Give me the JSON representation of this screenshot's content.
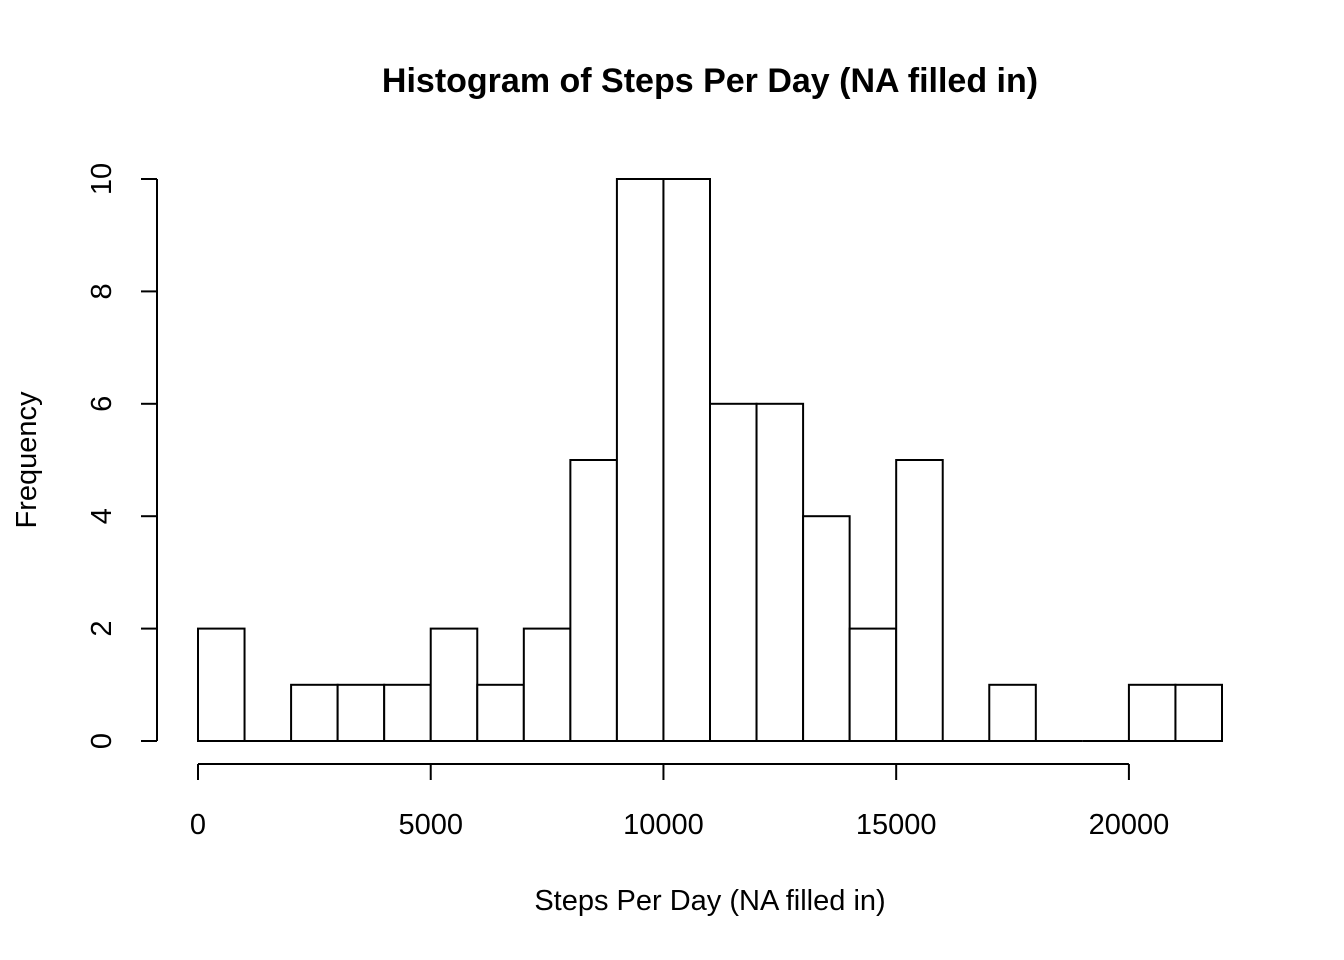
{
  "chart_data": {
    "type": "bar",
    "title": "Histogram of Steps Per Day (NA filled in)",
    "xlabel": "Steps Per Day (NA filled in)",
    "ylabel": "Frequency",
    "bins": [
      {
        "start": 0,
        "end": 1000,
        "count": 2
      },
      {
        "start": 1000,
        "end": 2000,
        "count": 0
      },
      {
        "start": 2000,
        "end": 3000,
        "count": 1
      },
      {
        "start": 3000,
        "end": 4000,
        "count": 1
      },
      {
        "start": 4000,
        "end": 5000,
        "count": 1
      },
      {
        "start": 5000,
        "end": 6000,
        "count": 2
      },
      {
        "start": 6000,
        "end": 7000,
        "count": 1
      },
      {
        "start": 7000,
        "end": 8000,
        "count": 2
      },
      {
        "start": 8000,
        "end": 9000,
        "count": 5
      },
      {
        "start": 9000,
        "end": 10000,
        "count": 10
      },
      {
        "start": 10000,
        "end": 11000,
        "count": 10
      },
      {
        "start": 11000,
        "end": 12000,
        "count": 6
      },
      {
        "start": 12000,
        "end": 13000,
        "count": 6
      },
      {
        "start": 13000,
        "end": 14000,
        "count": 4
      },
      {
        "start": 14000,
        "end": 15000,
        "count": 2
      },
      {
        "start": 15000,
        "end": 16000,
        "count": 5
      },
      {
        "start": 16000,
        "end": 17000,
        "count": 0
      },
      {
        "start": 17000,
        "end": 18000,
        "count": 1
      },
      {
        "start": 18000,
        "end": 19000,
        "count": 0
      },
      {
        "start": 19000,
        "end": 20000,
        "count": 0
      },
      {
        "start": 20000,
        "end": 21000,
        "count": 1
      },
      {
        "start": 21000,
        "end": 22000,
        "count": 1
      }
    ],
    "xticks": [
      0,
      5000,
      10000,
      15000,
      20000
    ],
    "yticks": [
      0,
      2,
      4,
      6,
      8,
      10
    ],
    "xlim": [
      0,
      22000
    ],
    "ylim": [
      0,
      10
    ],
    "grid": false,
    "colors": {
      "bar_fill": "#ffffff",
      "bar_stroke": "#000000"
    }
  }
}
